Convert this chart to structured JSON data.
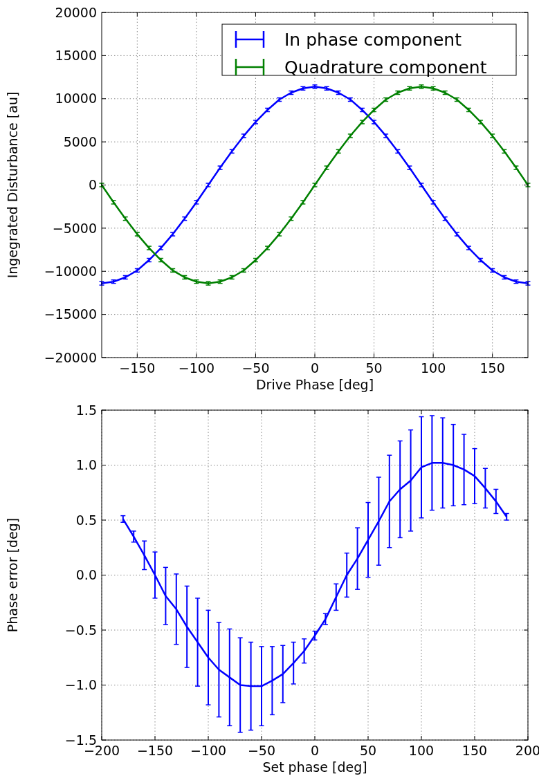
{
  "chart_data": [
    {
      "type": "line",
      "xlabel": "Drive Phase [deg]",
      "ylabel": "Ingegrated Disturbance [au]",
      "x": [
        -180,
        -170,
        -160,
        -150,
        -140,
        -130,
        -120,
        -110,
        -100,
        -90,
        -80,
        -70,
        -60,
        -50,
        -40,
        -30,
        -20,
        -10,
        0,
        10,
        20,
        30,
        40,
        50,
        60,
        70,
        80,
        90,
        100,
        110,
        120,
        130,
        140,
        150,
        160,
        170,
        180
      ],
      "series": [
        {
          "name": "In phase component",
          "color": "#0000ff",
          "values": [
            -11400,
            -11200,
            -10700,
            -9900,
            -8700,
            -7300,
            -5700,
            -3900,
            -2000,
            0,
            2000,
            3900,
            5700,
            7300,
            8700,
            9900,
            10700,
            11200,
            11400,
            11200,
            10700,
            9900,
            8700,
            7300,
            5700,
            3900,
            2000,
            0,
            -2000,
            -3900,
            -5700,
            -7300,
            -8700,
            -9900,
            -10700,
            -11200,
            -11400
          ],
          "errors": [
            200,
            200,
            200,
            200,
            200,
            200,
            200,
            200,
            200,
            200,
            200,
            200,
            200,
            200,
            200,
            200,
            200,
            200,
            200,
            200,
            200,
            200,
            200,
            200,
            200,
            200,
            200,
            200,
            200,
            200,
            200,
            200,
            200,
            200,
            200,
            200,
            200
          ]
        },
        {
          "name": "Quadrature component",
          "color": "#008000",
          "values": [
            0,
            -2000,
            -3900,
            -5700,
            -7300,
            -8700,
            -9900,
            -10700,
            -11200,
            -11400,
            -11200,
            -10700,
            -9900,
            -8700,
            -7300,
            -5700,
            -3900,
            -2000,
            0,
            2000,
            3900,
            5700,
            7300,
            8700,
            9900,
            10700,
            11200,
            11400,
            11200,
            10700,
            9900,
            8700,
            7300,
            5700,
            3900,
            2000,
            0
          ],
          "errors": [
            200,
            200,
            200,
            200,
            200,
            200,
            200,
            200,
            200,
            200,
            200,
            200,
            200,
            200,
            200,
            200,
            200,
            200,
            200,
            200,
            200,
            200,
            200,
            200,
            200,
            200,
            200,
            200,
            200,
            200,
            200,
            200,
            200,
            200,
            200,
            200,
            200
          ]
        }
      ],
      "xlim": [
        -180,
        180
      ],
      "xticks": [
        {
          "value": -150,
          "label": "−150"
        },
        {
          "value": -100,
          "label": "−100"
        },
        {
          "value": -50,
          "label": "−50"
        },
        0,
        50,
        100,
        150
      ],
      "ylim": [
        -20000,
        20000
      ],
      "yticks": [
        {
          "value": -20000,
          "label": "−20000"
        },
        {
          "value": -15000,
          "label": "−15000"
        },
        {
          "value": -10000,
          "label": "−10000"
        },
        {
          "value": -5000,
          "label": "−5000"
        },
        0,
        5000,
        10000,
        15000,
        20000
      ],
      "grid": true,
      "legend": "top right",
      "line_style": "solid"
    },
    {
      "type": "line",
      "xlabel": "Set phase [deg]",
      "ylabel": "Phase error [deg]",
      "x": [
        -180,
        -170,
        -160,
        -150,
        -140,
        -130,
        -120,
        -110,
        -100,
        -90,
        -80,
        -70,
        -60,
        -50,
        -40,
        -30,
        -20,
        -10,
        0,
        10,
        20,
        30,
        40,
        50,
        60,
        70,
        80,
        90,
        100,
        110,
        120,
        130,
        140,
        150,
        160,
        170,
        180
      ],
      "series": [
        {
          "color": "#0000ff",
          "values": [
            0.51,
            0.35,
            0.18,
            0.0,
            -0.19,
            -0.31,
            -0.47,
            -0.61,
            -0.75,
            -0.86,
            -0.93,
            -1.0,
            -1.01,
            -1.01,
            -0.96,
            -0.9,
            -0.8,
            -0.69,
            -0.55,
            -0.4,
            -0.2,
            0.0,
            0.15,
            0.32,
            0.49,
            0.67,
            0.78,
            0.86,
            0.98,
            1.02,
            1.02,
            1.0,
            0.96,
            0.9,
            0.79,
            0.67,
            0.53
          ],
          "errors": [
            0.03,
            0.05,
            0.13,
            0.21,
            0.26,
            0.32,
            0.37,
            0.4,
            0.43,
            0.43,
            0.44,
            0.43,
            0.4,
            0.36,
            0.31,
            0.26,
            0.19,
            0.11,
            0.04,
            0.05,
            0.12,
            0.2,
            0.28,
            0.34,
            0.4,
            0.42,
            0.44,
            0.46,
            0.46,
            0.43,
            0.41,
            0.37,
            0.32,
            0.25,
            0.18,
            0.11,
            0.03
          ]
        }
      ],
      "xlim": [
        -200,
        200
      ],
      "xticks": [
        {
          "value": -200,
          "label": "−200"
        },
        {
          "value": -150,
          "label": "−150"
        },
        {
          "value": -100,
          "label": "−100"
        },
        {
          "value": -50,
          "label": "−50"
        },
        0,
        50,
        100,
        150,
        200
      ],
      "ylim": [
        -1.5,
        1.5
      ],
      "yticks": [
        {
          "value": -1.5,
          "label": "−1.5"
        },
        {
          "value": -1.0,
          "label": "−1.0"
        },
        {
          "value": -0.5,
          "label": "−0.5"
        },
        {
          "value": 0,
          "label": "0.0"
        },
        {
          "value": 0.5,
          "label": "0.5"
        },
        {
          "value": 1.0,
          "label": "1.0"
        },
        {
          "value": 1.5,
          "label": "1.5"
        }
      ],
      "grid": true,
      "line_style": "solid"
    }
  ]
}
